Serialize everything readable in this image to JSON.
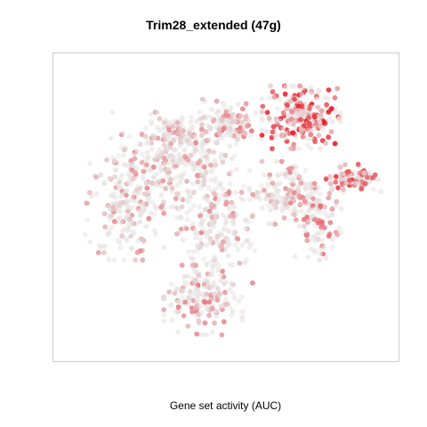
{
  "chart_data": {
    "type": "scatter",
    "title": "Trim28_extended (47g)",
    "caption": "Gene set activity (AUC)",
    "xlabel": "",
    "ylabel": "",
    "axes_shown": false,
    "frame": true,
    "color_low": "#e6e6e6",
    "color_high": "#e8000b",
    "clusters": [
      {
        "name": "",
        "cx": 0.34,
        "cy": 0.66,
        "rx": 0.16,
        "ry": 0.14,
        "n": 320,
        "act": 0.05
      },
      {
        "name": "",
        "cx": 0.19,
        "cy": 0.51,
        "rx": 0.1,
        "ry": 0.16,
        "n": 190,
        "act": 0.06
      },
      {
        "name": "",
        "cx": 0.47,
        "cy": 0.43,
        "rx": 0.1,
        "ry": 0.16,
        "n": 200,
        "act": 0.07
      },
      {
        "name": "",
        "cx": 0.43,
        "cy": 0.18,
        "rx": 0.1,
        "ry": 0.1,
        "n": 170,
        "act": 0.15
      },
      {
        "name": "",
        "cx": 0.73,
        "cy": 0.81,
        "rx": 0.1,
        "ry": 0.09,
        "n": 230,
        "act": 0.55
      },
      {
        "name": "",
        "cx": 0.51,
        "cy": 0.79,
        "rx": 0.07,
        "ry": 0.07,
        "n": 120,
        "act": 0.18
      },
      {
        "name": "",
        "cx": 0.68,
        "cy": 0.55,
        "rx": 0.09,
        "ry": 0.09,
        "n": 140,
        "act": 0.1
      },
      {
        "name": "",
        "cx": 0.78,
        "cy": 0.45,
        "rx": 0.06,
        "ry": 0.11,
        "n": 110,
        "act": 0.2
      },
      {
        "name": "",
        "cx": 0.89,
        "cy": 0.6,
        "rx": 0.07,
        "ry": 0.04,
        "n": 80,
        "act": 0.45
      },
      {
        "name": "",
        "cx": 0.36,
        "cy": 0.76,
        "rx": 0.04,
        "ry": 0.04,
        "n": 40,
        "act": 0.12
      }
    ]
  }
}
